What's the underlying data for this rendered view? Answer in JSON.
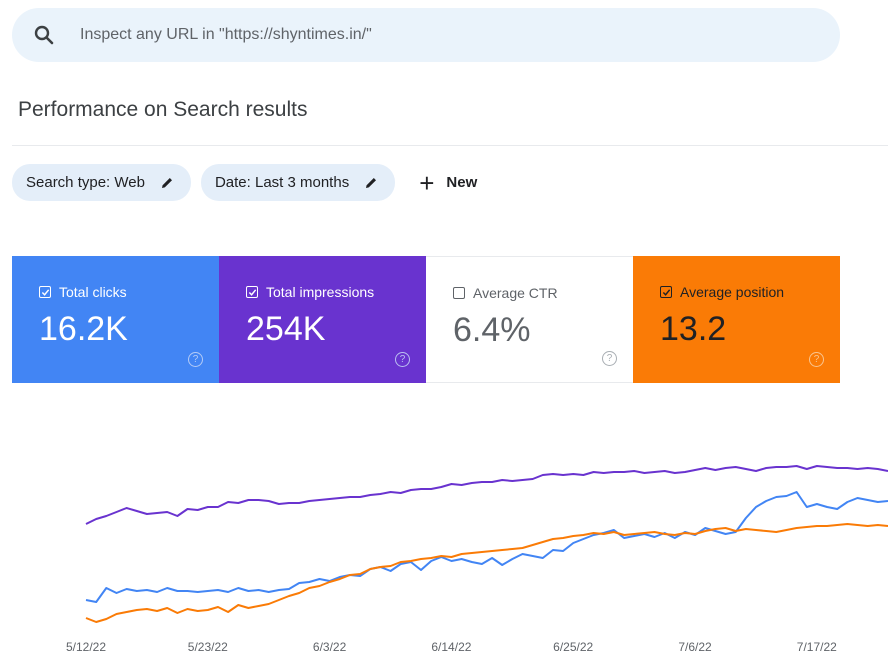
{
  "search": {
    "placeholder": "Inspect any URL in \"https://shyntimes.in/\""
  },
  "page_title": "Performance on Search results",
  "filters": [
    {
      "label": "Search type: Web"
    },
    {
      "label": "Date: Last 3 months"
    }
  ],
  "new_label": "New",
  "metrics": [
    {
      "label": "Total clicks",
      "value": "16.2K",
      "checked": true,
      "color": "#4285f4"
    },
    {
      "label": "Total impressions",
      "value": "254K",
      "checked": true,
      "color": "#6933cf"
    },
    {
      "label": "Average CTR",
      "value": "6.4%",
      "checked": false,
      "color": "#ffffff"
    },
    {
      "label": "Average position",
      "value": "13.2",
      "checked": true,
      "color": "#fa7b06"
    }
  ],
  "chart_data": {
    "type": "line",
    "x_tick_labels": [
      "5/12/22",
      "5/23/22",
      "6/3/22",
      "6/14/22",
      "6/25/22",
      "7/6/22",
      "7/17/22"
    ],
    "x_start": "5/10/22",
    "x_end": "7/23/22",
    "y_axis_labels": "not shown",
    "series": [
      {
        "color": "#6933cf",
        "values": [
          84,
          79,
          76,
          72,
          68,
          71,
          74,
          73,
          72,
          76,
          69,
          70,
          67,
          67,
          62,
          63,
          60,
          60,
          61,
          64,
          63,
          63,
          61,
          60,
          59,
          58,
          57,
          57,
          55,
          54,
          52,
          53,
          50,
          49,
          49,
          47,
          44,
          45,
          43,
          42,
          42,
          40,
          41,
          40,
          39,
          35,
          34,
          35,
          34,
          35,
          32,
          33,
          32,
          32,
          31,
          33,
          32,
          31,
          33,
          32,
          30,
          28,
          30,
          28,
          27,
          29,
          31,
          28,
          27,
          27,
          26,
          29,
          26,
          27,
          28,
          28,
          29,
          28,
          29,
          31
        ]
      },
      {
        "color": "#4285f4",
        "values": [
          160,
          162,
          148,
          153,
          149,
          151,
          150,
          152,
          148,
          151,
          151,
          152,
          151,
          150,
          152,
          148,
          151,
          150,
          152,
          150,
          149,
          143,
          142,
          139,
          141,
          137,
          135,
          136,
          129,
          127,
          131,
          124,
          122,
          130,
          121,
          117,
          121,
          119,
          122,
          124,
          118,
          125,
          119,
          114,
          116,
          118,
          110,
          111,
          103,
          99,
          95,
          93,
          90,
          98,
          96,
          94,
          97,
          93,
          98,
          92,
          95,
          88,
          91,
          94,
          92,
          78,
          67,
          61,
          57,
          56,
          52,
          67,
          64,
          67,
          69,
          62,
          58,
          60,
          62,
          61
        ]
      },
      {
        "color": "#fa7b06",
        "values": [
          178,
          182,
          179,
          174,
          172,
          170,
          169,
          171,
          168,
          173,
          169,
          171,
          170,
          167,
          172,
          165,
          168,
          166,
          164,
          160,
          156,
          153,
          148,
          146,
          142,
          139,
          135,
          134,
          129,
          127,
          126,
          122,
          121,
          119,
          118,
          116,
          117,
          114,
          113,
          112,
          111,
          110,
          109,
          108,
          105,
          102,
          99,
          98,
          96,
          95,
          93,
          94,
          92,
          95,
          94,
          93,
          92,
          94,
          95,
          93,
          94,
          91,
          89,
          88,
          91,
          89,
          90,
          91,
          92,
          90,
          88,
          87,
          86,
          86,
          85,
          84,
          85,
          86,
          85,
          86
        ]
      }
    ]
  }
}
